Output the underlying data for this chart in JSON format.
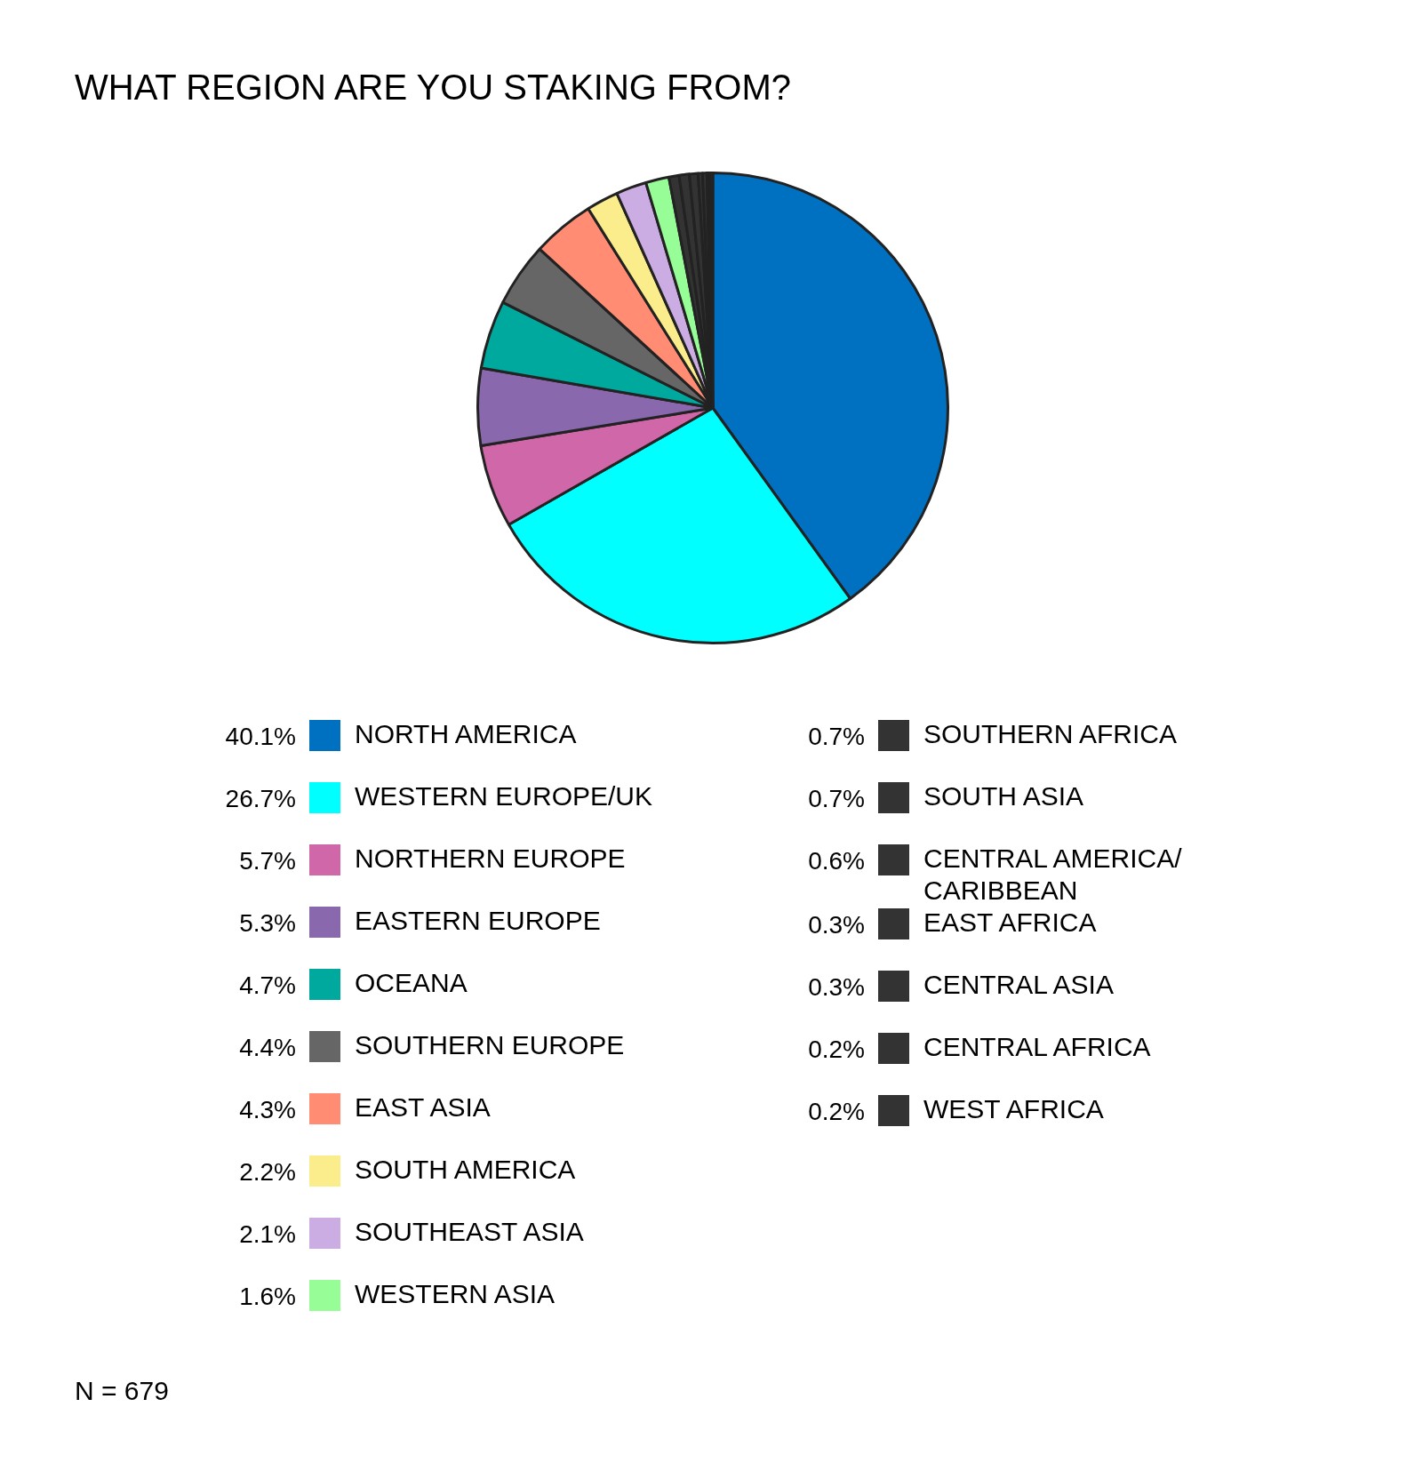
{
  "chart_data": {
    "type": "pie",
    "title": "WHAT REGION ARE YOU STAKING FROM?",
    "categories": [
      "NORTH AMERICA",
      "WESTERN EUROPE/UK",
      "NORTHERN EUROPE",
      "EASTERN EUROPE",
      "OCEANA",
      "SOUTHERN EUROPE",
      "EAST ASIA",
      "SOUTH AMERICA",
      "SOUTHEAST ASIA",
      "WESTERN ASIA",
      "SOUTHERN AFRICA",
      "SOUTH ASIA",
      "CENTRAL AMERICA/ CARIBBEAN",
      "EAST AFRICA",
      "CENTRAL ASIA",
      "CENTRAL AFRICA",
      "WEST AFRICA"
    ],
    "values": [
      40.1,
      26.7,
      5.7,
      5.3,
      4.7,
      4.4,
      4.3,
      2.2,
      2.1,
      1.6,
      0.7,
      0.7,
      0.6,
      0.3,
      0.3,
      0.2,
      0.2
    ],
    "colors": [
      "#0070c0",
      "#00ffff",
      "#d067a8",
      "#8a68ad",
      "#00a99d",
      "#666666",
      "#ff8c73",
      "#fbec8c",
      "#ccade3",
      "#97fe97",
      "#333333",
      "#333333",
      "#333333",
      "#333333",
      "#333333",
      "#333333",
      "#333333"
    ],
    "value_labels": [
      "40.1%",
      "26.7%",
      "5.7%",
      "5.3%",
      "4.7%",
      "4.4%",
      "4.3%",
      "2.2%",
      "2.1%",
      "1.6%",
      "0.7%",
      "0.7%",
      "0.6%",
      "0.3%",
      "0.3%",
      "0.2%",
      "0.2%"
    ],
    "legend": "bottom",
    "annotations": [
      "N = 679"
    ]
  }
}
